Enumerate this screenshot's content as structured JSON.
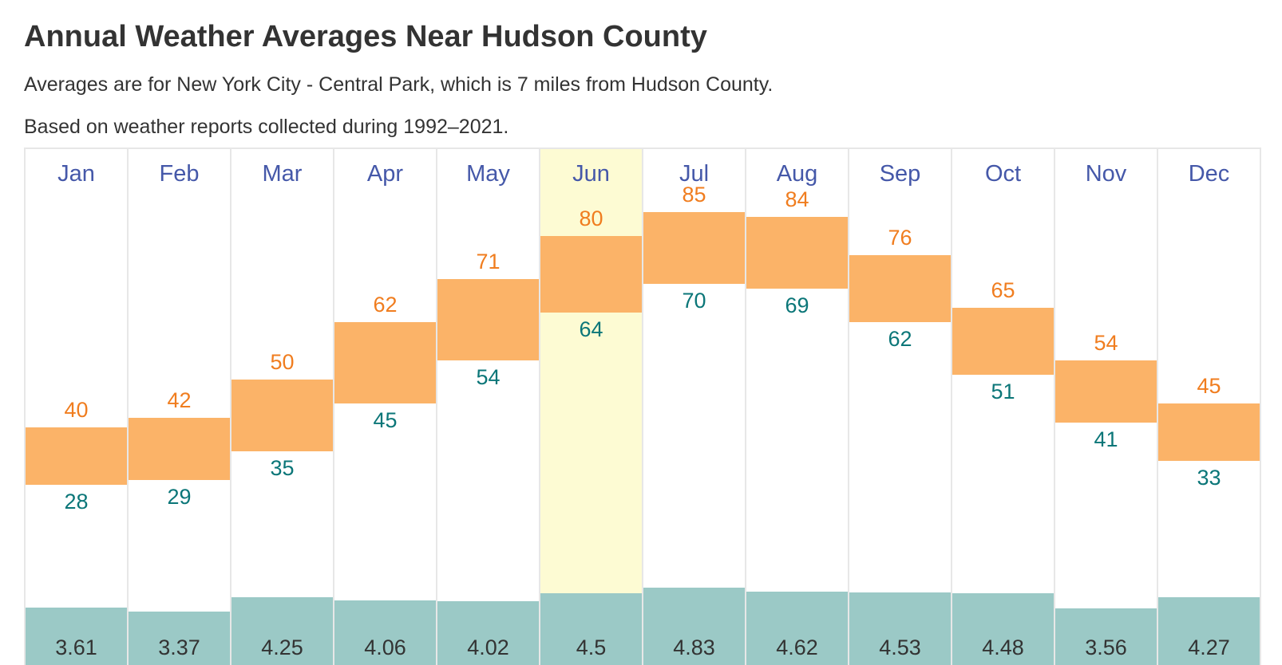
{
  "header": {
    "title": "Annual Weather Averages Near Hudson County",
    "subtitle": "Averages are for New York City - Central Park, which is 7 miles from Hudson County.",
    "period_note": "Based on weather reports collected during 1992–2021."
  },
  "colors": {
    "month_label": "#4558a9",
    "high_value_text": "#f07d1f",
    "temp_bar_fill": "#fbb368",
    "low_value_text": "#0b7678",
    "precip_bar_fill": "#9bc9c6",
    "precip_value_text": "#333333",
    "highlight_month_bg": "#fdfbd3",
    "column_border": "#e7e7e7",
    "heading_text": "#333333"
  },
  "chart_data": {
    "type": "bar",
    "title": "Annual Weather Averages Near Hudson County",
    "categories": [
      "Jan",
      "Feb",
      "Mar",
      "Apr",
      "May",
      "Jun",
      "Jul",
      "Aug",
      "Sep",
      "Oct",
      "Nov",
      "Dec"
    ],
    "series": [
      {
        "name": "high",
        "values": [
          40,
          42,
          50,
          62,
          71,
          80,
          85,
          84,
          76,
          65,
          54,
          45
        ]
      },
      {
        "name": "low",
        "values": [
          28,
          29,
          35,
          45,
          54,
          64,
          70,
          69,
          62,
          51,
          41,
          33
        ]
      },
      {
        "name": "precipitation",
        "values": [
          3.61,
          3.37,
          4.25,
          4.06,
          4.02,
          4.5,
          4.83,
          4.62,
          4.53,
          4.48,
          3.56,
          4.27
        ]
      }
    ],
    "highlighted_month": "Jun",
    "temp_axis_range": [
      0,
      98
    ],
    "grid": "column-borders-only",
    "legend": "none"
  }
}
